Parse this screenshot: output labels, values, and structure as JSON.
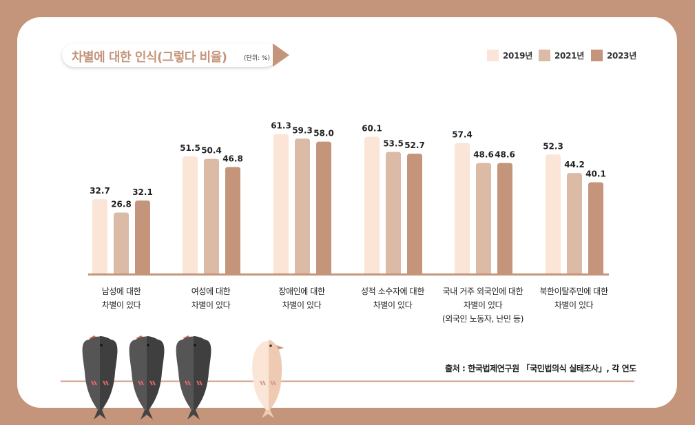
{
  "title": "차별에 대한 인식(그렇다 비율)",
  "unit": "(단위: %)",
  "source": "출처 : 한국법제연구원 「국민법의식 실태조사」, 각 연도",
  "colors": {
    "background": "#c4957a",
    "title": "#c4957a",
    "baseline": "#c4957a",
    "wire": "#d19c86"
  },
  "chart_data": {
    "type": "bar",
    "categories": [
      [
        "남성에 대한",
        "차별이 있다"
      ],
      [
        "여성에 대한",
        "차별이 있다"
      ],
      [
        "장애인에 대한",
        "차별이 있다"
      ],
      [
        "성적 소수자에 대한",
        "차별이 있다"
      ],
      [
        "국내 거주 외국인에 대한",
        "차별이 있다",
        "(외국인 노동자, 난민 등)"
      ],
      [
        "북한이탈주민에 대한",
        "차별이 있다"
      ]
    ],
    "series": [
      {
        "name": "2019년",
        "color": "#fae5d7",
        "values": [
          32.7,
          51.5,
          61.3,
          60.1,
          57.4,
          52.3
        ]
      },
      {
        "name": "2021년",
        "color": "#dcbba6",
        "values": [
          26.8,
          50.4,
          59.3,
          53.5,
          48.6,
          44.2
        ]
      },
      {
        "name": "2023년",
        "color": "#c4957a",
        "values": [
          32.1,
          46.8,
          58.0,
          52.7,
          48.6,
          40.1
        ]
      }
    ],
    "ylim": [
      0,
      70
    ],
    "legend_position": "top-right",
    "grid": false
  }
}
